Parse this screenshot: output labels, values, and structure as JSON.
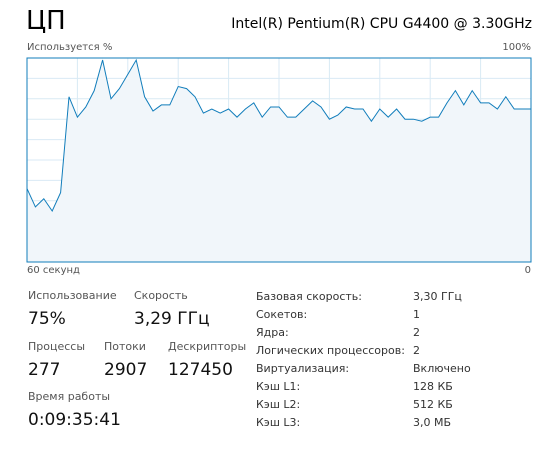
{
  "header": {
    "title": "ЦП",
    "cpu_name": "Intel(R) Pentium(R) CPU G4400 @ 3.30GHz"
  },
  "graph": {
    "y_label": "Используется %",
    "top_label": "100%",
    "x_left_label": "60 секунд",
    "x_right_label": "0",
    "ylim": [
      0,
      100
    ],
    "values": [
      36,
      27,
      31,
      25,
      34,
      81,
      71,
      76,
      84,
      99,
      80,
      85,
      92,
      99,
      81,
      74,
      77,
      77,
      86,
      85,
      81,
      73,
      75,
      73,
      75,
      71,
      75,
      78,
      71,
      76,
      76,
      71,
      71,
      75,
      79,
      76,
      70,
      72,
      76,
      75,
      75,
      69,
      75,
      71,
      75,
      70,
      70,
      69,
      71,
      71,
      78,
      84,
      77,
      84,
      78,
      78,
      75,
      81,
      75,
      75,
      75
    ]
  },
  "stats": [
    {
      "label": "Использование",
      "value": "75%"
    },
    {
      "label": "Скорость",
      "value": "3,29 ГГц"
    },
    {
      "label": "Процессы",
      "value": "277"
    },
    {
      "label": "Потоки",
      "value": "2907"
    },
    {
      "label": "Дескрипторы",
      "value": "127450"
    },
    {
      "label": "Время работы",
      "value": "0:09:35:41"
    }
  ],
  "details": [
    [
      "Базовая скорость:",
      "3,30 ГГц"
    ],
    [
      "Сокетов:",
      "1"
    ],
    [
      "Ядра:",
      "2"
    ],
    [
      "Логических процессоров:",
      "2"
    ],
    [
      "Виртуализация:",
      "Включено"
    ],
    [
      "Кэш L1:",
      "128 КБ"
    ],
    [
      "Кэш L2:",
      "512 КБ"
    ],
    [
      "Кэш L3:",
      "3,0 МБ"
    ]
  ]
}
